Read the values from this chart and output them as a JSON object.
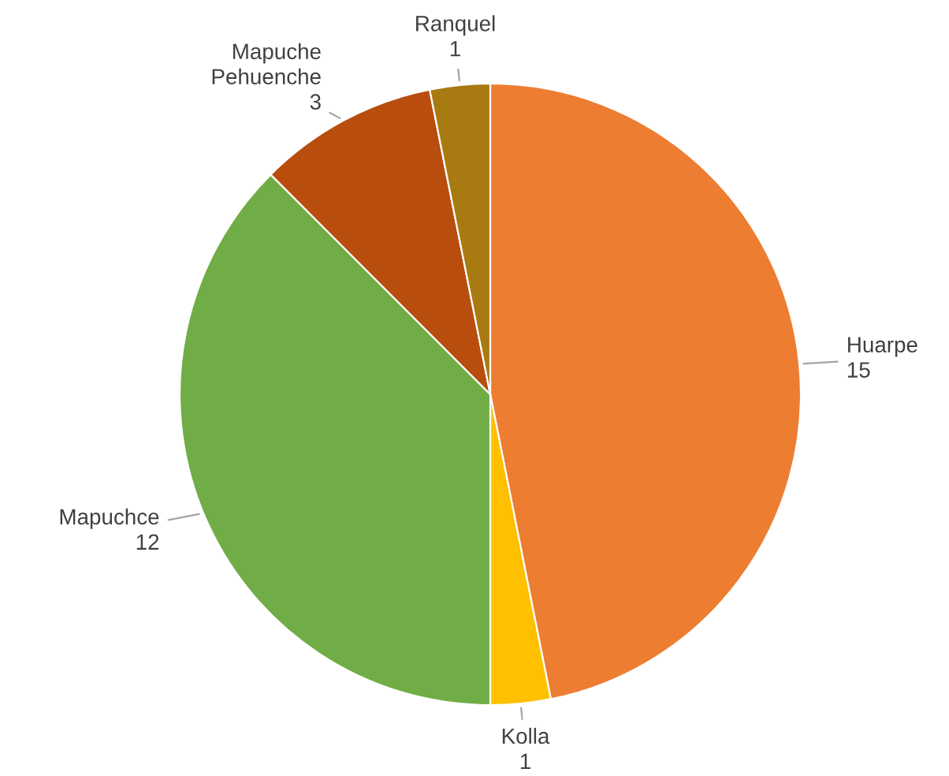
{
  "chart_data": {
    "type": "pie",
    "categories": [
      "Huarpe",
      "Kolla",
      "Mapuchce",
      "Mapuche Pehuenche",
      "Ranquel"
    ],
    "values": [
      15,
      1,
      12,
      3,
      1
    ],
    "colors": [
      "#ed7d31",
      "#ffc000",
      "#70ad47",
      "#b84d0e",
      "#a87a12"
    ],
    "data_labels": true
  }
}
